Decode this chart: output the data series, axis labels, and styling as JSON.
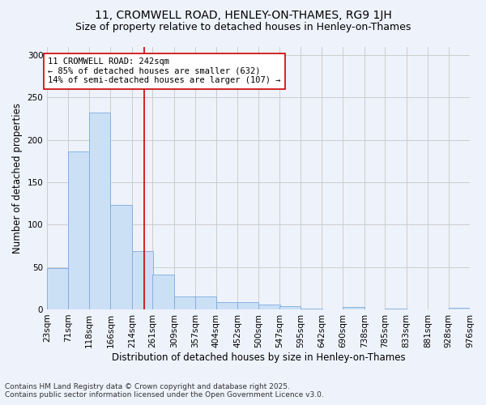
{
  "title1": "11, CROMWELL ROAD, HENLEY-ON-THAMES, RG9 1JH",
  "title2": "Size of property relative to detached houses in Henley-on-Thames",
  "xlabel": "Distribution of detached houses by size in Henley-on-Thames",
  "ylabel": "Number of detached properties",
  "bins": [
    23,
    71,
    118,
    166,
    214,
    261,
    309,
    357,
    404,
    452,
    500,
    547,
    595,
    642,
    690,
    738,
    785,
    833,
    881,
    928,
    976
  ],
  "bin_labels": [
    "23sqm",
    "71sqm",
    "118sqm",
    "166sqm",
    "214sqm",
    "261sqm",
    "309sqm",
    "357sqm",
    "404sqm",
    "452sqm",
    "500sqm",
    "547sqm",
    "595sqm",
    "642sqm",
    "690sqm",
    "738sqm",
    "785sqm",
    "833sqm",
    "881sqm",
    "928sqm",
    "976sqm"
  ],
  "values": [
    49,
    186,
    232,
    123,
    69,
    41,
    15,
    15,
    9,
    9,
    6,
    4,
    1,
    0,
    3,
    0,
    1,
    0,
    0,
    2
  ],
  "bar_color": "#cce0f5",
  "bar_edge_color": "#7aaadd",
  "grid_color": "#cccccc",
  "background_color": "#eef2fb",
  "red_line_x": 242,
  "annotation_line1": "11 CROMWELL ROAD: 242sqm",
  "annotation_line2": "← 85% of detached houses are smaller (632)",
  "annotation_line3": "14% of semi-detached houses are larger (107) →",
  "annotation_box_color": "#ffffff",
  "annotation_border_color": "#cc0000",
  "footnote1": "Contains HM Land Registry data © Crown copyright and database right 2025.",
  "footnote2": "Contains public sector information licensed under the Open Government Licence v3.0.",
  "ylim": [
    0,
    310
  ],
  "yticks": [
    0,
    50,
    100,
    150,
    200,
    250,
    300
  ],
  "title1_fontsize": 10,
  "title2_fontsize": 9,
  "xlabel_fontsize": 8.5,
  "ylabel_fontsize": 8.5,
  "tick_fontsize": 7.5,
  "annot_fontsize": 7.5,
  "footnote_fontsize": 6.5
}
